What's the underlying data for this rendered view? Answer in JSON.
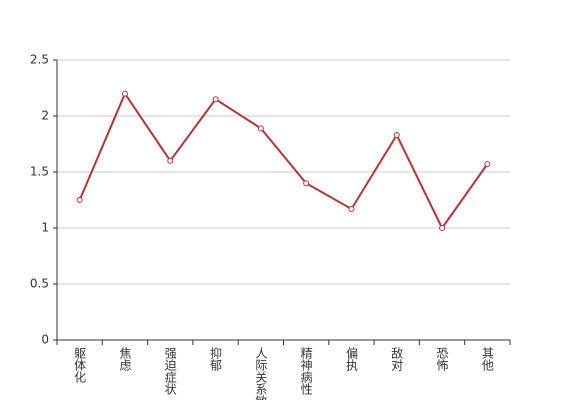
{
  "chart_data": {
    "type": "line",
    "categories": [
      "躯体化",
      "焦虑",
      "强迫症状",
      "抑郁",
      "人际关系敏感",
      "精神病性",
      "偏执",
      "敌对",
      "恐怖",
      "其他"
    ],
    "series": [
      {
        "color": "#b83232",
        "values": [
          1.25,
          2.2,
          1.6,
          2.15,
          1.89,
          1.4,
          1.17,
          1.83,
          1.0,
          1.57
        ]
      }
    ],
    "ylim": [
      0,
      2.5
    ],
    "yticks": [
      0,
      0.5,
      1,
      1.5,
      2,
      2.5
    ],
    "grid": true
  }
}
